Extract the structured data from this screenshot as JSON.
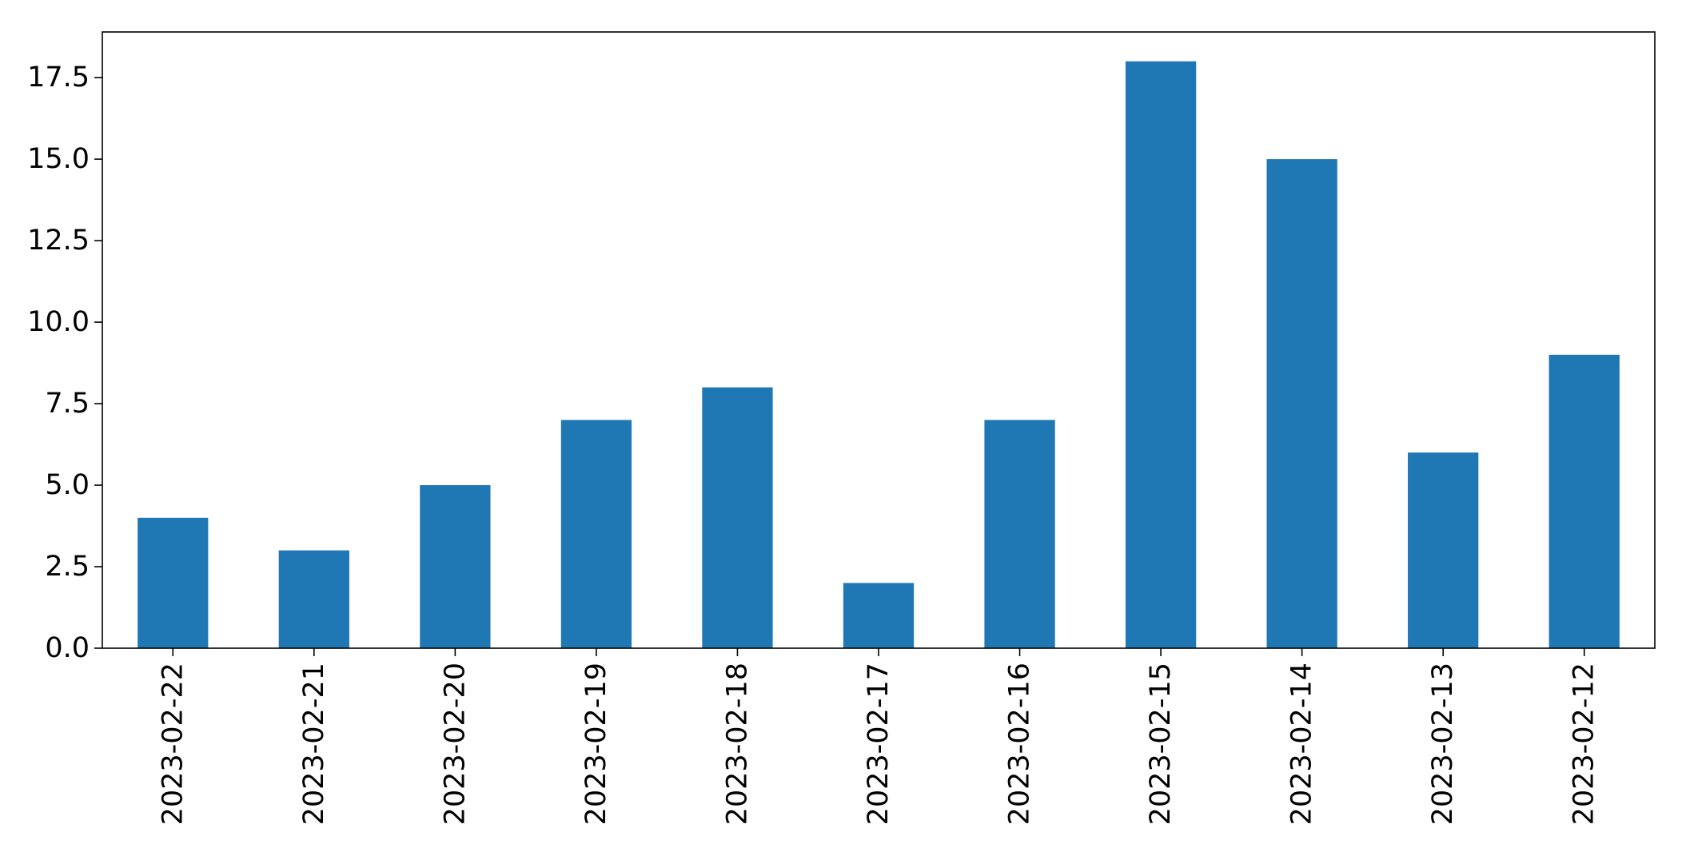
{
  "chart_data": {
    "type": "bar",
    "title": "",
    "xlabel": "",
    "ylabel": "",
    "categories": [
      "2023-02-22",
      "2023-02-21",
      "2023-02-20",
      "2023-02-19",
      "2023-02-18",
      "2023-02-17",
      "2023-02-16",
      "2023-02-15",
      "2023-02-14",
      "2023-02-13",
      "2023-02-12"
    ],
    "values": [
      4,
      3,
      5,
      7,
      8,
      2,
      7,
      18,
      15,
      6,
      9
    ],
    "ylim": [
      0,
      18.9
    ],
    "yticks": [
      0.0,
      2.5,
      5.0,
      7.5,
      10.0,
      12.5,
      15.0,
      17.5
    ],
    "ytick_labels": [
      "0.0",
      "2.5",
      "5.0",
      "7.5",
      "10.0",
      "12.5",
      "15.0",
      "17.5"
    ],
    "bar_color": "#1f77b4",
    "grid": false,
    "legend": "none"
  }
}
